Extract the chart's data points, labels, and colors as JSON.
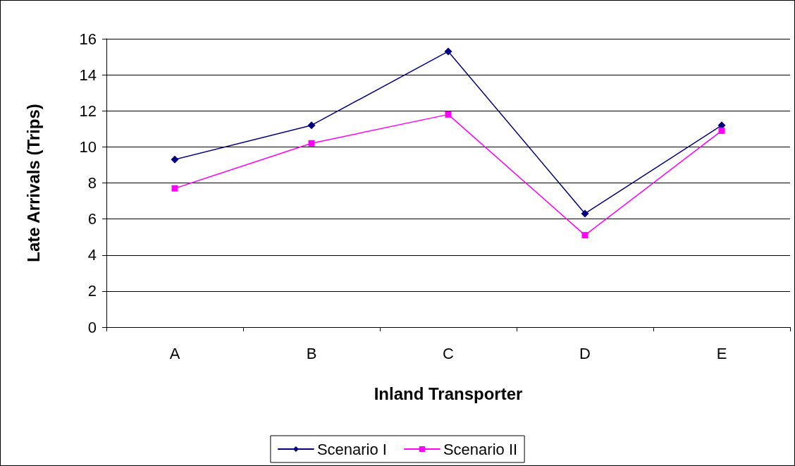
{
  "chart_data": {
    "type": "line",
    "xlabel": "Inland Transporter",
    "ylabel": "Late Arrivals (Trips)",
    "categories": [
      "A",
      "B",
      "C",
      "D",
      "E"
    ],
    "series": [
      {
        "name": "Scenario I",
        "color": "#000080",
        "marker": "diamond",
        "values": [
          9.3,
          11.2,
          15.3,
          6.3,
          11.2
        ]
      },
      {
        "name": "Scenario II",
        "color": "#ff00ff",
        "marker": "square",
        "values": [
          7.7,
          10.2,
          11.8,
          5.1,
          10.9
        ]
      }
    ],
    "ylim": [
      0,
      16
    ],
    "yticks": [
      0,
      2,
      4,
      6,
      8,
      10,
      12,
      14,
      16
    ],
    "grid": "y",
    "legend": "bottom",
    "line_style": "solid"
  }
}
